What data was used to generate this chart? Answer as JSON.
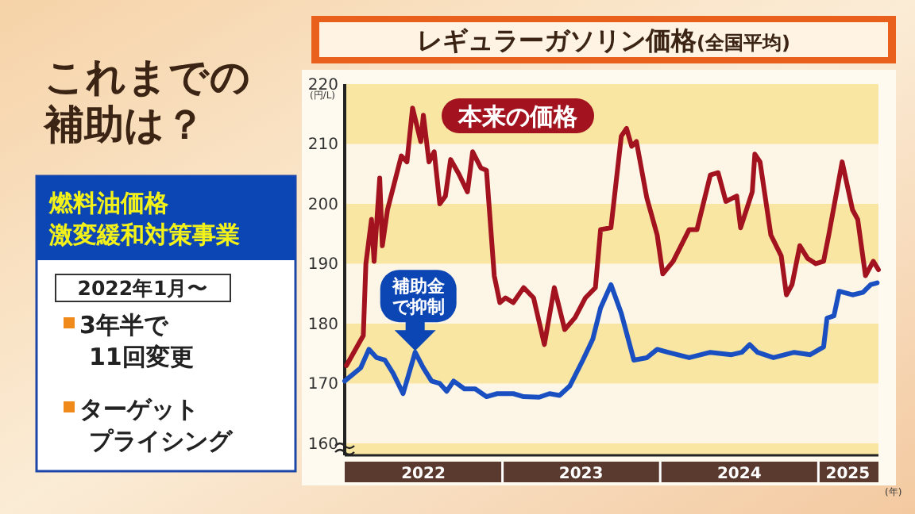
{
  "chart_data": {
    "type": "line",
    "title": "レギュラーガソリン価格",
    "subtitle": "(全国平均)",
    "ylabel": "(円/L)",
    "xlabel": "(年)",
    "xlim": [
      "2022-01-01",
      "2025-05-20"
    ],
    "xticks": [
      {
        "value": "2022-07-02",
        "label": "2022"
      },
      {
        "value": "2023-01-01",
        "label": null
      },
      {
        "value": "2023-07-02",
        "label": "2023"
      },
      {
        "value": "2024-01-01",
        "label": null
      },
      {
        "value": "2024-07-02",
        "label": "2024"
      },
      {
        "value": "2025-01-01",
        "label": null
      },
      {
        "value": "2025-03-10",
        "label": "2025"
      }
    ],
    "ylim": [
      158,
      220
    ],
    "yticks": [
      160,
      170,
      180,
      190,
      200,
      210,
      220
    ],
    "grid": false,
    "bands": [
      {
        "axis": "y",
        "from": 210,
        "to": 220,
        "color": "#f9e6a2"
      },
      {
        "axis": "y",
        "from": 190,
        "to": 200,
        "color": "#f9e6a2"
      },
      {
        "axis": "y",
        "from": 170,
        "to": 180,
        "color": "#f9e6a2"
      },
      {
        "axis": "y",
        "from": 158,
        "to": 160,
        "color": "#f9e6a2"
      }
    ],
    "line_style": "solid",
    "marker": "none",
    "series": [
      {
        "name": "本来の価格",
        "color": "#a3121f",
        "x": [
          "2022-01-05",
          "2022-02-13",
          "2022-02-19",
          "2022-03-04",
          "2022-03-10",
          "2022-03-23",
          "2022-03-29",
          "2022-04-10",
          "2022-05-12",
          "2022-05-25",
          "2022-06-07",
          "2022-06-26",
          "2022-07-02",
          "2022-07-15",
          "2022-07-27",
          "2022-08-09",
          "2022-08-22",
          "2022-09-03",
          "2022-09-22",
          "2022-10-12",
          "2022-10-24",
          "2022-11-12",
          "2022-11-25",
          "2022-12-13",
          "2022-12-26",
          "2023-01-08",
          "2023-01-26",
          "2023-02-19",
          "2023-03-14",
          "2023-04-08",
          "2023-05-01",
          "2023-05-25",
          "2023-06-18",
          "2023-07-12",
          "2023-08-04",
          "2023-08-16",
          "2023-09-09",
          "2023-10-03",
          "2023-10-15",
          "2023-10-27",
          "2023-11-07",
          "2023-12-01",
          "2023-12-25",
          "2024-01-07",
          "2024-01-31",
          "2024-03-08",
          "2024-03-26",
          "2024-04-26",
          "2024-05-14",
          "2024-06-01",
          "2024-06-26",
          "2024-07-05",
          "2024-08-01",
          "2024-08-07",
          "2024-08-19",
          "2024-09-13",
          "2024-10-07",
          "2024-10-19",
          "2024-11-01",
          "2024-11-19",
          "2024-12-07",
          "2024-12-26",
          "2025-01-13",
          "2025-01-25",
          "2025-02-25",
          "2025-03-21",
          "2025-04-02",
          "2025-04-20",
          "2025-05-08",
          "2025-05-20"
        ],
        "values": [
          173,
          178,
          190,
          197.4,
          190.4,
          204.3,
          193,
          199,
          208,
          207,
          216,
          210.4,
          214.8,
          207,
          208.7,
          200,
          201.3,
          207.4,
          205,
          202,
          208.7,
          206,
          205.6,
          188,
          183.5,
          184.3,
          183.5,
          186,
          184.3,
          176.5,
          186,
          179,
          181,
          184.3,
          186,
          195.7,
          196,
          211.3,
          212.6,
          209.6,
          210.4,
          201,
          194.8,
          188.3,
          190.4,
          195.7,
          195.7,
          204.8,
          205.2,
          200.4,
          201.3,
          196,
          202,
          208.3,
          207,
          194.8,
          191.3,
          184.8,
          186.5,
          193,
          190.9,
          190,
          190.4,
          194.8,
          207,
          199,
          197.4,
          188,
          190.4,
          189
        ]
      },
      {
        "color": "#1a4fc2",
        "x": [
          "2022-01-01",
          "2022-02-07",
          "2022-02-26",
          "2022-03-16",
          "2022-04-04",
          "2022-04-23",
          "2022-05-16",
          "2022-06-13",
          "2022-07-02",
          "2022-07-21",
          "2022-08-09",
          "2022-08-25",
          "2022-09-10",
          "2022-10-05",
          "2022-10-30",
          "2022-11-25",
          "2022-12-20",
          "2023-01-26",
          "2023-02-19",
          "2023-03-27",
          "2023-04-20",
          "2023-05-13",
          "2023-06-06",
          "2023-07-06",
          "2023-07-29",
          "2023-08-16",
          "2023-09-09",
          "2023-10-03",
          "2023-11-01",
          "2023-12-01",
          "2023-12-25",
          "2024-01-19",
          "2024-03-08",
          "2024-04-26",
          "2024-06-14",
          "2024-07-08",
          "2024-07-26",
          "2024-08-13",
          "2024-09-19",
          "2024-11-06",
          "2024-12-13",
          "2025-01-13",
          "2025-01-21",
          "2025-02-06",
          "2025-02-18",
          "2025-03-21",
          "2025-04-14",
          "2025-05-02",
          "2025-05-17"
        ],
        "values": [
          170.4,
          172.6,
          175.7,
          174.3,
          173.9,
          171.7,
          168.3,
          175.2,
          172.6,
          170.4,
          170,
          168.7,
          170.4,
          169.1,
          169.1,
          167.8,
          168.3,
          168.3,
          167.8,
          167.7,
          168.3,
          168,
          169.6,
          173.9,
          177.4,
          182.6,
          186.5,
          181.7,
          173.9,
          174.3,
          175.7,
          175.2,
          174.3,
          175.2,
          174.8,
          175.2,
          176.5,
          175.2,
          174.3,
          175.2,
          174.8,
          176.1,
          180.9,
          181.3,
          185.4,
          184.8,
          185.2,
          186.5,
          186.8
        ]
      }
    ],
    "annotations": [
      "これまでの補助は？",
      "燃料油価格激変緩和対策事業",
      "2022年1月〜",
      "3年半で11回変更",
      "ターゲットプライシング",
      {
        "text": "補助金で抑制",
        "x": "2022-06-13",
        "y": 175.2
      }
    ]
  }
}
